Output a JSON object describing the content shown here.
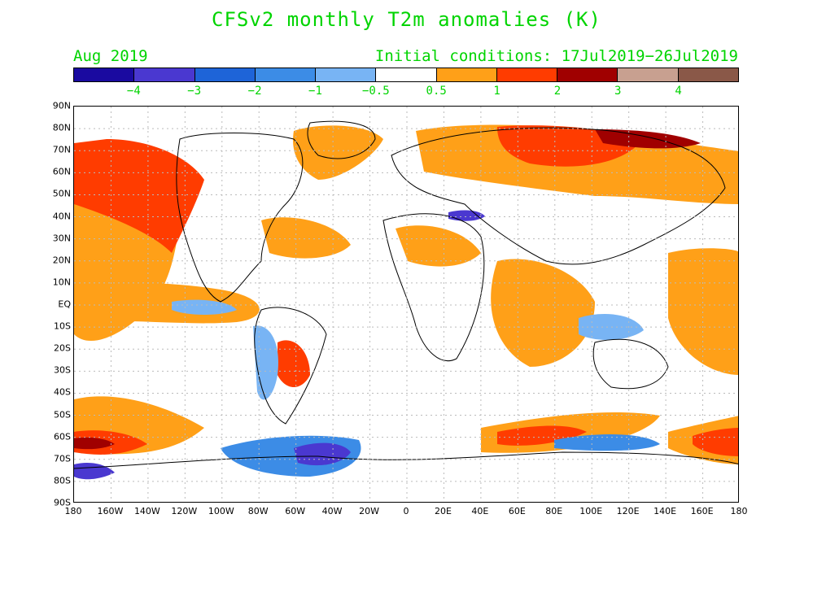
{
  "title": "CFSv2 monthly T2m anomalies (K)",
  "valid_month": "Aug 2019",
  "initial_conditions": "Initial conditions: 17Jul2019−26Jul2019",
  "colorbar": {
    "colors": [
      "#1a0aa0",
      "#4a38d0",
      "#1e64d8",
      "#3c8ce6",
      "#78b4f4",
      "#ffffff",
      "#ffa018",
      "#ff3c00",
      "#a00000",
      "#c8a090",
      "#8a5848"
    ],
    "labels": [
      "−4",
      "−3",
      "−2",
      "−1",
      "−0.5",
      "0.5",
      "1",
      "2",
      "3",
      "4"
    ]
  },
  "map": {
    "lat_labels": [
      "90N",
      "80N",
      "70N",
      "60N",
      "50N",
      "40N",
      "30N",
      "20N",
      "10N",
      "EQ",
      "10S",
      "20S",
      "30S",
      "40S",
      "50S",
      "60S",
      "70S",
      "80S",
      "90S"
    ],
    "lon_labels": [
      "180",
      "160W",
      "140W",
      "120W",
      "100W",
      "80W",
      "60W",
      "40W",
      "20W",
      "0",
      "20E",
      "40E",
      "60E",
      "80E",
      "100E",
      "120E",
      "140E",
      "160E",
      "180"
    ]
  }
}
